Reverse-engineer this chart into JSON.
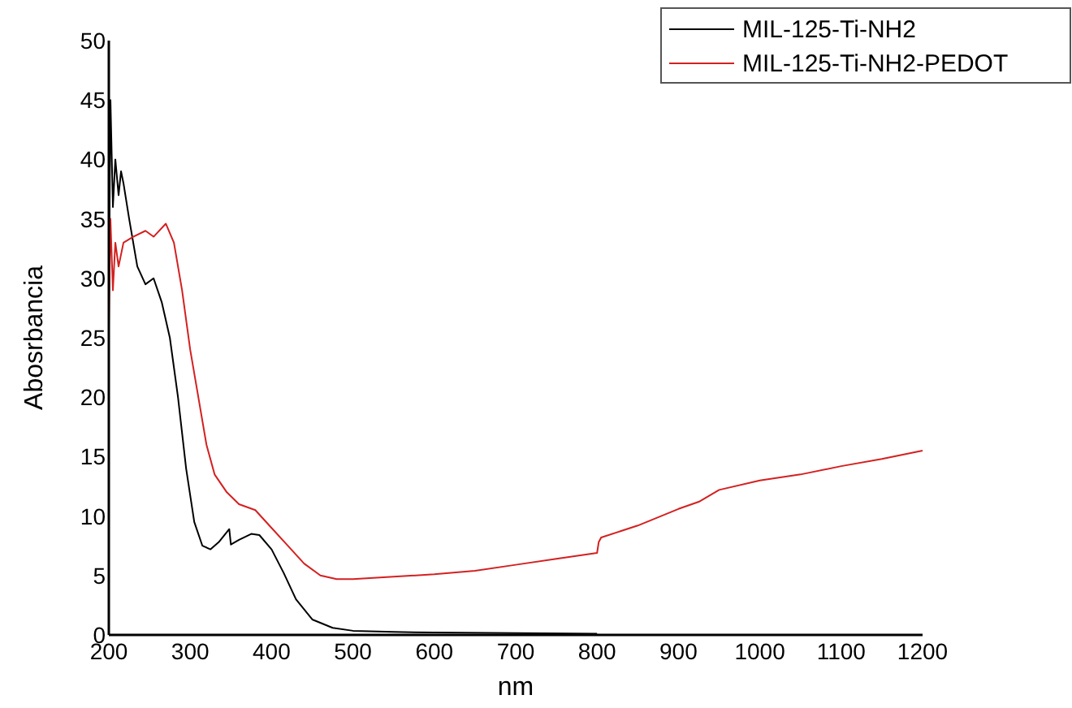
{
  "chart_data": {
    "type": "line",
    "xlabel": "nm",
    "ylabel": "Abosrbancia",
    "xlim": [
      200,
      1200
    ],
    "xticks": [
      200,
      300,
      400,
      500,
      600,
      700,
      800,
      900,
      1000,
      1100,
      1200
    ],
    "ylim": [
      0,
      50
    ],
    "yticks": [
      0,
      5,
      10,
      15,
      20,
      25,
      30,
      35,
      40,
      45,
      50
    ],
    "grid": false,
    "legend": "top right",
    "line_style": "solid",
    "marker": "none",
    "series": [
      {
        "name": "MIL-125-Ti-NH2",
        "color": "#000000",
        "x": [
          200,
          202,
          205,
          208,
          212,
          215,
          218,
          225,
          235,
          245,
          255,
          265,
          275,
          285,
          295,
          305,
          315,
          325,
          335,
          348,
          350,
          360,
          375,
          385,
          400,
          415,
          430,
          450,
          475,
          500,
          550,
          600,
          700,
          800
        ],
        "values": [
          28,
          45,
          36,
          40,
          37,
          39,
          38,
          35,
          31,
          29.5,
          30,
          28,
          25,
          20,
          14,
          9.5,
          7.5,
          7.2,
          7.8,
          8.9,
          7.6,
          8,
          8.5,
          8.4,
          7.2,
          5.2,
          3,
          1.3,
          0.6,
          0.35,
          0.25,
          0.2,
          0.15,
          0.1
        ]
      },
      {
        "name": "MIL-125-Ti-NH2-PEDOT",
        "color": "#d42020",
        "x": [
          200,
          202,
          205,
          208,
          212,
          218,
          230,
          245,
          255,
          270,
          280,
          290,
          300,
          310,
          320,
          330,
          345,
          360,
          380,
          400,
          420,
          440,
          460,
          480,
          500,
          550,
          600,
          650,
          700,
          750,
          800,
          802,
          805,
          850,
          900,
          925,
          950,
          1000,
          1050,
          1100,
          1150,
          1200
        ],
        "values": [
          26,
          35,
          29,
          33,
          31,
          33,
          33.5,
          34,
          33.5,
          34.6,
          33,
          29,
          24,
          20,
          16,
          13.5,
          12,
          11,
          10.5,
          9,
          7.5,
          6,
          5,
          4.7,
          4.7,
          4.9,
          5.1,
          5.4,
          5.9,
          6.4,
          6.9,
          7.8,
          8.2,
          9.2,
          10.6,
          11.2,
          12.2,
          13,
          13.5,
          14.2,
          14.8,
          15.5
        ]
      }
    ]
  }
}
